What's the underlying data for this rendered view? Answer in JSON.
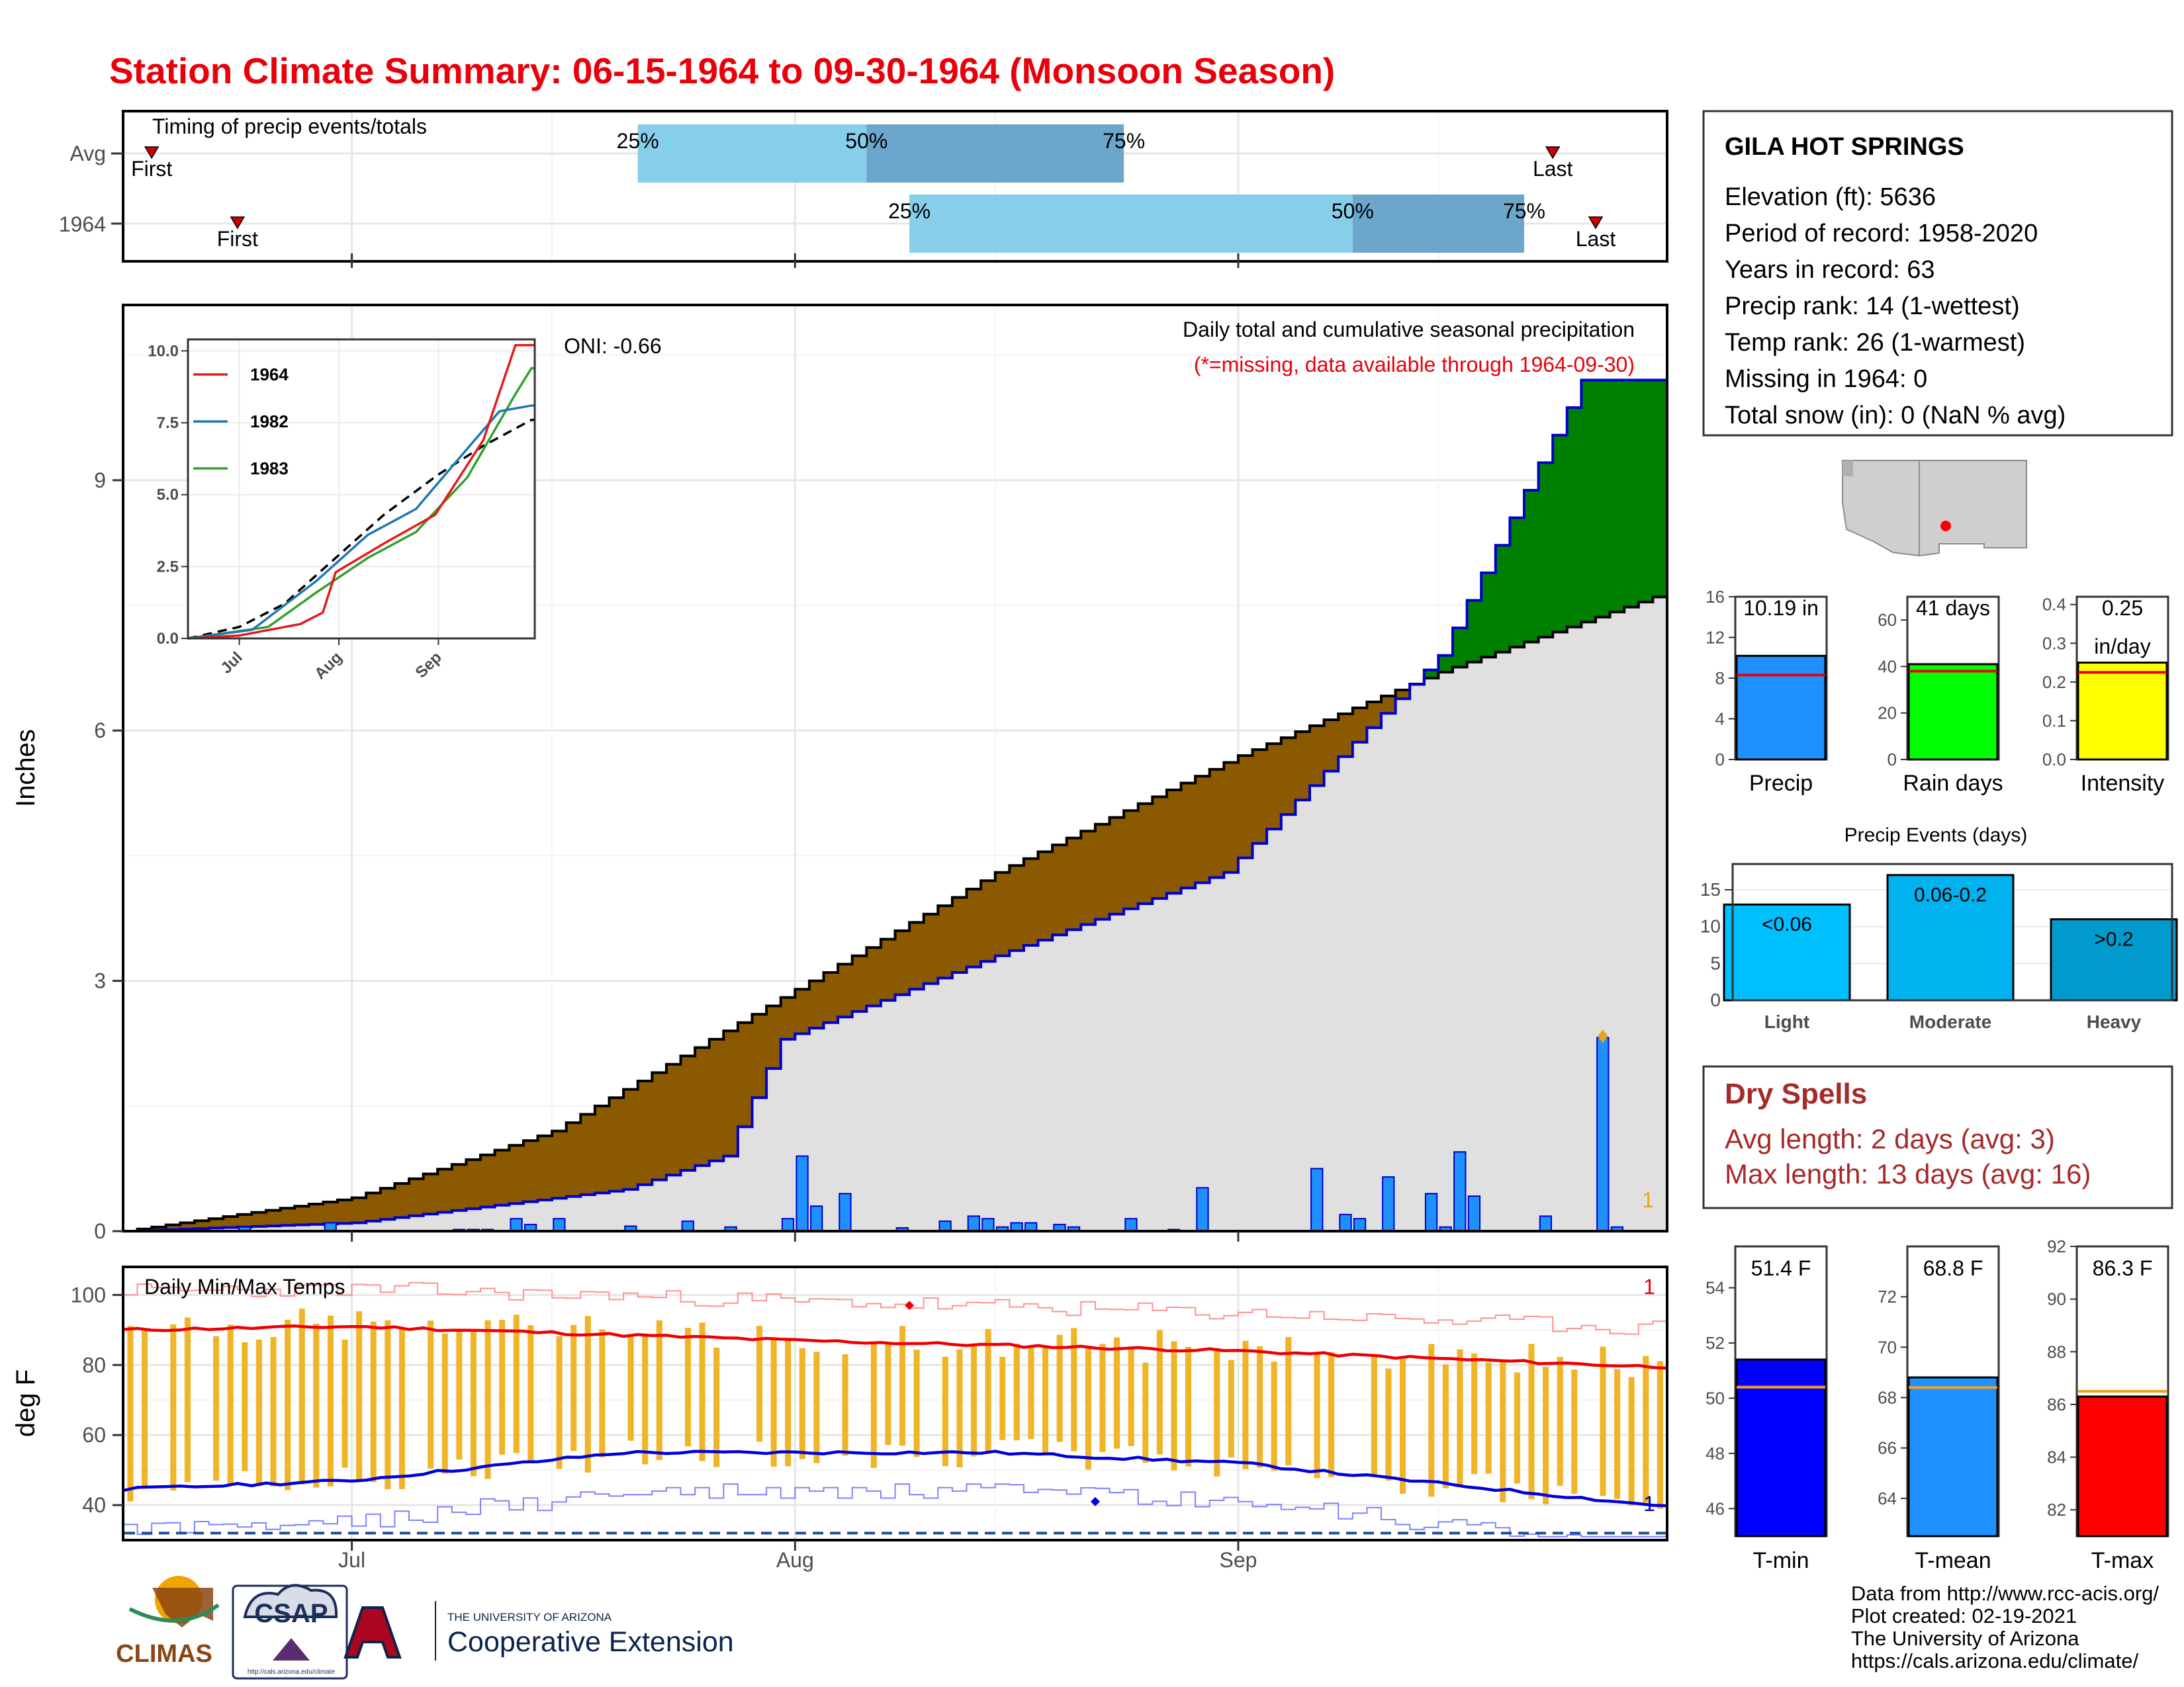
{
  "title": "Station Climate Summary: 06-15-1964 to 09-30-1964 (Monsoon Season)",
  "colors": {
    "title": "#e8000b",
    "avg_fill": "#e0e0e0",
    "cum_line": "#0000cc",
    "deficit_fill": "#8b5a00",
    "surplus_fill": "#008000",
    "bar_blue": "#1e90ff",
    "temp_bar": "#f0b429",
    "tmax_line": "#ee0000",
    "tmin_line": "#0000dd",
    "q_light": "#87ceeb",
    "q_dark": "#6ca6cd"
  },
  "timing": {
    "title": "Timing of precip events/totals",
    "rows": [
      {
        "label": "Avg",
        "first_date": "06-17",
        "p25_date": "07-21",
        "p50_date": "08-06",
        "p75_date": "08-24",
        "last_date": "09-23"
      },
      {
        "label": "1964",
        "first_date": "06-23",
        "p25_date": "08-09",
        "p50_date": "09-09",
        "p75_date": "09-21",
        "last_date": "09-26"
      }
    ],
    "labels": {
      "first": "First",
      "last": "Last",
      "p25": "25%",
      "p50": "50%",
      "p75": "75%"
    }
  },
  "precip_panel": {
    "ylabel": "Inches",
    "y_ticks": [
      "0",
      "3",
      "6",
      "9"
    ],
    "oni": "ONI: -0.66",
    "note1": "Daily total and cumulative seasonal precipitation",
    "note2": "(*=missing, data available through 1964-09-30)",
    "corner_count": "1",
    "inset": {
      "y_ticks": [
        "0.0",
        "2.5",
        "5.0",
        "7.5",
        "10.0"
      ],
      "x_ticks": [
        "Jul",
        "Aug",
        "Sep"
      ],
      "legend": [
        {
          "name": "1964",
          "color": "#e31a1c"
        },
        {
          "name": "1982",
          "color": "#1f78b4"
        },
        {
          "name": "1983",
          "color": "#33a02c"
        }
      ]
    }
  },
  "temp_panel": {
    "title": "Daily Min/Max Temps",
    "ylabel": "deg F",
    "y_ticks": [
      "40",
      "60",
      "80",
      "100"
    ],
    "corner_top": "1",
    "corner_bottom": "1"
  },
  "x_ticks": [
    "Jul",
    "Aug",
    "Sep"
  ],
  "station": {
    "name": "GILA HOT SPRINGS",
    "lines": [
      "Elevation (ft): 5636",
      "Period of record: 1958-2020",
      "Years in record: 63",
      "Precip rank: 14 (1-wettest)",
      "Temp rank: 26 (1-warmest)",
      "Missing in 1964: 0",
      "Total snow (in): 0 (NaN % avg)"
    ]
  },
  "mini_bars": [
    {
      "name": "Precip",
      "label": "10.19 in",
      "label2": "",
      "value": 10.19,
      "avg": 8.3,
      "ymax": 16,
      "ticks": [
        "0",
        "4",
        "8",
        "12",
        "16"
      ],
      "color": "#1e90ff"
    },
    {
      "name": "Rain days",
      "label": "41 days",
      "label2": "",
      "value": 41,
      "avg": 38,
      "ymax": 70,
      "ticks": [
        "0",
        "20",
        "40",
        "60"
      ],
      "color": "#00ff00"
    },
    {
      "name": "Intensity",
      "label": "0.25",
      "label2": "in/day",
      "value": 0.25,
      "avg": 0.225,
      "ymax": 0.42,
      "ticks": [
        "0.0",
        "0.1",
        "0.2",
        "0.3",
        "0.4"
      ],
      "color": "#ffff00"
    }
  ],
  "events": {
    "title": "Precip Events (days)",
    "ticks": [
      "0",
      "5",
      "10",
      "15"
    ],
    "bars": [
      {
        "name": "Light",
        "label": "<0.06",
        "value": 13,
        "color": "#00bfff"
      },
      {
        "name": "Moderate",
        "label": "0.06-0.2",
        "value": 17,
        "color": "#00b2ee"
      },
      {
        "name": "Heavy",
        "label": ">0.2",
        "value": 11,
        "color": "#009acd"
      }
    ]
  },
  "dry_spells": {
    "title": "Dry Spells",
    "line1": "Avg length: 2 days (avg: 3)",
    "line2": "Max length: 13 days (avg: 16)"
  },
  "temp_bars": [
    {
      "name": "T-min",
      "label": "51.4 F",
      "value": 51.4,
      "avg": 50.4,
      "ymin": 45,
      "ymax": 55.5,
      "ticks": [
        "46",
        "48",
        "50",
        "52",
        "54"
      ],
      "color": "#0000ff"
    },
    {
      "name": "T-mean",
      "label": "68.8 F",
      "value": 68.8,
      "avg": 68.4,
      "ymin": 62.5,
      "ymax": 74,
      "ticks": [
        "64",
        "66",
        "68",
        "70",
        "72"
      ],
      "color": "#1e90ff"
    },
    {
      "name": "T-max",
      "label": "86.3 F",
      "value": 86.3,
      "avg": 86.5,
      "ymin": 81,
      "ymax": 92,
      "ticks": [
        "82",
        "84",
        "86",
        "88",
        "90",
        "92"
      ],
      "color": "#ff0000"
    }
  ],
  "footer": [
    "Data from http://www.rcc-acis.org/",
    "Plot created: 02-19-2021",
    "The University of Arizona",
    "https://cals.arizona.edu/climate/"
  ],
  "logos": {
    "climas": "CLIMAS",
    "csap": "CSAP",
    "csap_url": "http://cals.arizona.edu/climate",
    "ua_small": "THE UNIVERSITY OF ARIZONA",
    "ua_big": "Cooperative Extension"
  },
  "chart_data": [
    {
      "type": "area",
      "title": "Daily total and cumulative seasonal precipitation",
      "ylabel": "Inches",
      "ylim": [
        0,
        11.1
      ],
      "x_range": [
        "1964-06-15",
        "1964-09-30"
      ],
      "cumulative_avg_checkpoints": [
        {
          "date": "06-15",
          "value": 0.0
        },
        {
          "date": "07-01",
          "value": 0.4
        },
        {
          "date": "07-15",
          "value": 1.2
        },
        {
          "date": "08-01",
          "value": 2.9
        },
        {
          "date": "08-15",
          "value": 4.3
        },
        {
          "date": "09-01",
          "value": 5.7
        },
        {
          "date": "09-15",
          "value": 6.7
        },
        {
          "date": "09-30",
          "value": 7.6
        }
      ],
      "cumulative_1964_checkpoints": [
        {
          "date": "06-15",
          "value": 0.0
        },
        {
          "date": "07-01",
          "value": 0.1
        },
        {
          "date": "07-20",
          "value": 0.5
        },
        {
          "date": "07-27",
          "value": 0.9
        },
        {
          "date": "07-31",
          "value": 2.3
        },
        {
          "date": "08-15",
          "value": 3.3
        },
        {
          "date": "08-31",
          "value": 4.3
        },
        {
          "date": "09-15",
          "value": 6.9
        },
        {
          "date": "09-25",
          "value": 10.2
        },
        {
          "date": "09-30",
          "value": 10.2
        }
      ],
      "daily_1964": [
        {
          "date": "06-20",
          "value": 0.02
        },
        {
          "date": "06-23",
          "value": 0.05
        },
        {
          "date": "06-29",
          "value": 0.1
        },
        {
          "date": "07-08",
          "value": 0.02
        },
        {
          "date": "07-09",
          "value": 0.02
        },
        {
          "date": "07-10",
          "value": 0.02
        },
        {
          "date": "07-12",
          "value": 0.15
        },
        {
          "date": "07-13",
          "value": 0.08
        },
        {
          "date": "07-15",
          "value": 0.15
        },
        {
          "date": "07-20",
          "value": 0.06
        },
        {
          "date": "07-24",
          "value": 0.12
        },
        {
          "date": "07-27",
          "value": 0.05
        },
        {
          "date": "07-31",
          "value": 0.15
        },
        {
          "date": "08-01",
          "value": 0.9
        },
        {
          "date": "08-02",
          "value": 0.3
        },
        {
          "date": "08-04",
          "value": 0.45
        },
        {
          "date": "08-08",
          "value": 0.04
        },
        {
          "date": "08-11",
          "value": 0.12
        },
        {
          "date": "08-13",
          "value": 0.18
        },
        {
          "date": "08-14",
          "value": 0.15
        },
        {
          "date": "08-15",
          "value": 0.05
        },
        {
          "date": "08-16",
          "value": 0.1
        },
        {
          "date": "08-17",
          "value": 0.1
        },
        {
          "date": "08-19",
          "value": 0.08
        },
        {
          "date": "08-20",
          "value": 0.05
        },
        {
          "date": "08-24",
          "value": 0.15
        },
        {
          "date": "08-27",
          "value": 0.02
        },
        {
          "date": "08-29",
          "value": 0.52
        },
        {
          "date": "09-06",
          "value": 0.75
        },
        {
          "date": "09-08",
          "value": 0.2
        },
        {
          "date": "09-09",
          "value": 0.15
        },
        {
          "date": "09-11",
          "value": 0.65
        },
        {
          "date": "09-14",
          "value": 0.45
        },
        {
          "date": "09-15",
          "value": 0.05
        },
        {
          "date": "09-16",
          "value": 0.95
        },
        {
          "date": "09-17",
          "value": 0.42
        },
        {
          "date": "09-22",
          "value": 0.18
        },
        {
          "date": "09-26",
          "value": 2.32
        },
        {
          "date": "09-27",
          "value": 0.05
        }
      ]
    },
    {
      "type": "bar",
      "title": "Daily Min/Max Temps",
      "ylabel": "deg F",
      "ylim": [
        30,
        108
      ],
      "avg_tmax_checkpoints": [
        {
          "date": "06-15",
          "value": 90
        },
        {
          "date": "07-01",
          "value": 91
        },
        {
          "date": "08-01",
          "value": 87
        },
        {
          "date": "09-01",
          "value": 84
        },
        {
          "date": "09-30",
          "value": 79.5
        }
      ],
      "avg_tmin_checkpoints": [
        {
          "date": "06-15",
          "value": 44.5
        },
        {
          "date": "07-01",
          "value": 47
        },
        {
          "date": "07-20",
          "value": 55
        },
        {
          "date": "08-15",
          "value": 55
        },
        {
          "date": "09-01",
          "value": 52
        },
        {
          "date": "09-30",
          "value": 40
        }
      ],
      "freezing_line": 32
    }
  ]
}
